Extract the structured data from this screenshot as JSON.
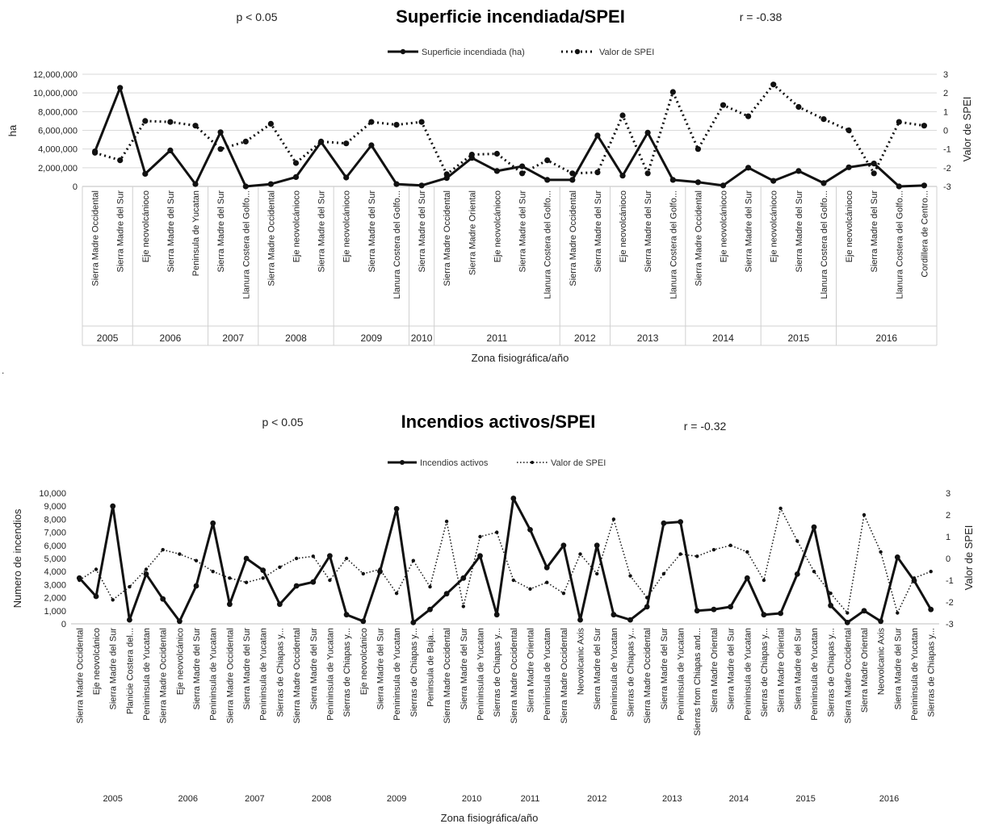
{
  "chart_data": [
    {
      "type": "line",
      "title": "Superficie incendiada/SPEI",
      "p_note": "p < 0.05",
      "r_note": "r = -0.38",
      "xlabel": "Zona fisiográfica/año",
      "ylabel": "ha",
      "y2label": "Valor de SPEI",
      "ylim": [
        0,
        12000000
      ],
      "y_ticks": [
        "0",
        "2,000,000",
        "4,000,000",
        "6,000,000",
        "8,000,000",
        "10,000,000",
        "12,000,000"
      ],
      "y2lim": [
        -3,
        3
      ],
      "y2_ticks": [
        "-3",
        "-2",
        "-1",
        "0",
        "1",
        "2",
        "3"
      ],
      "grid": true,
      "legend_position": "top-center",
      "categories": [
        "Sierra Madre Occidental",
        "Sierra Madre del Sur",
        "Eje neovolcánioco",
        "Sierra Madre del Sur",
        "Peninsula de Yucatan",
        "Sierra Madre del Sur",
        "Llanura Costera del Golfo...",
        "Sierra Madre Occidental",
        "Eje neovolcánioco",
        "Sierra Madre del Sur",
        "Eje neovolcánioco",
        "Sierra Madre del Sur",
        "Llanura Costera del Golfo...",
        "Sierra Madre del Sur",
        "Sierra Madre Occidental",
        "Sierra Madre Oriental",
        "Eje neovolcánioco",
        "Sierra Madre del Sur",
        "Llanura Costera del Golfo...",
        "Sierra Madre Occidental",
        "Sierra Madre del Sur",
        "Eje neovolcánioco",
        "Sierra Madre del Sur",
        "Llanura Costera del Golfo...",
        "Sierra Madre Occidental",
        "Eje neovolcánioco",
        "Sierra Madre del Sur",
        "Eje neovolcánioco",
        "Sierra Madre del Sur",
        "Llanura Costera del Golfo...",
        "Eje neovolcánioco",
        "Sierra Madre del Sur",
        "Llanura Costera del Golfo...",
        "Cordillera de Centro..."
      ],
      "groups": [
        {
          "label": "2005",
          "start": 0,
          "end": 1
        },
        {
          "label": "2006",
          "start": 2,
          "end": 4
        },
        {
          "label": "2007",
          "start": 5,
          "end": 6
        },
        {
          "label": "2008",
          "start": 7,
          "end": 9
        },
        {
          "label": "2009",
          "start": 10,
          "end": 12
        },
        {
          "label": "2010",
          "start": 13,
          "end": 13
        },
        {
          "label": "2011",
          "start": 14,
          "end": 18
        },
        {
          "label": "2012",
          "start": 19,
          "end": 20
        },
        {
          "label": "2013",
          "start": 21,
          "end": 23
        },
        {
          "label": "2014",
          "start": 24,
          "end": 26
        },
        {
          "label": "2015",
          "start": 27,
          "end": 29
        },
        {
          "label": "2016",
          "start": 30,
          "end": 33
        }
      ],
      "series": [
        {
          "name": "Superficie incendiada (ha)",
          "axis": "left",
          "style": "solid",
          "values": [
            3750000,
            10550000,
            1350000,
            3850000,
            250000,
            5800000,
            0,
            250000,
            1000000,
            4750000,
            950000,
            4400000,
            250000,
            100000,
            900000,
            3050000,
            1650000,
            2150000,
            700000,
            700000,
            5450000,
            1150000,
            5750000,
            700000,
            450000,
            100000,
            2000000,
            600000,
            1650000,
            350000,
            2050000,
            2450000,
            0,
            100000
          ]
        },
        {
          "name": "Valor de SPEI",
          "axis": "right",
          "style": "dotted",
          "values": [
            -1.2,
            -1.6,
            0.5,
            0.45,
            0.25,
            -1.0,
            -0.6,
            0.35,
            -1.75,
            -0.6,
            -0.7,
            0.45,
            0.3,
            0.45,
            -2.35,
            -1.3,
            -1.25,
            -2.3,
            -1.6,
            -2.3,
            -2.25,
            0.8,
            -2.3,
            2.05,
            -1.0,
            1.35,
            0.75,
            2.45,
            1.25,
            0.6,
            0.0,
            -2.3,
            0.45,
            0.25
          ]
        }
      ]
    },
    {
      "type": "line",
      "title": "Incendios activos/SPEI",
      "p_note": "p < 0.05",
      "r_note": "r = -0.32",
      "xlabel": "Zona fisiográfica/año",
      "ylabel": "Numero de incendios",
      "y2label": "Valor de SPEI",
      "ylim": [
        0,
        10000
      ],
      "y_ticks": [
        "0",
        "1,000",
        "2,000",
        "3,000",
        "4,000",
        "5,000",
        "6,000",
        "7,000",
        "8,000",
        "9,000",
        "10,000"
      ],
      "y2lim": [
        -3,
        3
      ],
      "y2_ticks": [
        "-3",
        "-2",
        "-1",
        "0",
        "1",
        "2",
        "3"
      ],
      "grid": false,
      "legend_position": "top-center",
      "categories": [
        "Sierra Madre Occidental",
        "Eje neovolcánico",
        "Sierra Madre del Sur",
        "Planicie Costera del...",
        "Penininsula de Yucatan",
        "Sierra Madre Occidental",
        "Eje neovolcánico",
        "Sierra Madre del Sur",
        "Penininsula de Yucatan",
        "Sierra Madre Occidental",
        "Sierra Madre del Sur",
        "Penininsula de Yucatan",
        "Sierras de Chiapas y...",
        "Sierra Madre Occidental",
        "Sierra Madre del Sur",
        "Penininsula de Yucatan",
        "Sierras de Chiapas y...",
        "Eje neovolcánico",
        "Sierra Madre del Sur",
        "Penininsula de Yucatan",
        "Sierras de Chiapas y...",
        "Peninsula de Baja...",
        "Sierra Madre Occidental",
        "Sierra Madre del Sur",
        "Penininsula de Yucatan",
        "Sierras de Chiapas y...",
        "Sierra Madre Occidental",
        "Sierra Madre Oriental",
        "Penininsula de Yucatan",
        "Sierra Madre Occidental",
        "Neovolcanic Axis",
        "Sierra Madre del Sur",
        "Penininsula de Yucatan",
        "Sierras de Chiapas y...",
        "Sierra Madre Occidental",
        "Sierra Madre del Sur",
        "Penininsula de Yucatan",
        "Sierras from Chiapas and...",
        "Sierra Madre Oriental",
        "Sierra Madre del Sur",
        "Penininsula de Yucatan",
        "Sierras de Chiapas y...",
        "Sierra Madre Oriental",
        "Sierra Madre del Sur",
        "Penininsula de Yucatan",
        "Sierras de Chiapas y...",
        "Sierra Madre Occidental",
        "Sierra Madre Oriental",
        "Neovolcanic Axis",
        "Sierra Madre del Sur",
        "Penininsula de Yucatan",
        "Sierras de Chiapas y..."
      ],
      "groups": [
        {
          "label": "2005",
          "start": 0,
          "end": 4
        },
        {
          "label": "2006",
          "start": 5,
          "end": 8
        },
        {
          "label": "2007",
          "start": 9,
          "end": 12
        },
        {
          "label": "2008",
          "start": 13,
          "end": 16
        },
        {
          "label": "2009",
          "start": 17,
          "end": 21
        },
        {
          "label": "2010",
          "start": 22,
          "end": 25
        },
        {
          "label": "2011",
          "start": 26,
          "end": 28
        },
        {
          "label": "2012",
          "start": 29,
          "end": 33
        },
        {
          "label": "2013",
          "start": 34,
          "end": 37
        },
        {
          "label": "2014",
          "start": 38,
          "end": 41
        },
        {
          "label": "2015",
          "start": 42,
          "end": 45
        },
        {
          "label": "2016",
          "start": 46,
          "end": 51
        }
      ],
      "series": [
        {
          "name": "Incendios activos",
          "axis": "left",
          "style": "solid",
          "values": [
            3500,
            2100,
            9000,
            300,
            3800,
            1900,
            200,
            2900,
            7700,
            1500,
            5000,
            4100,
            1500,
            2900,
            3200,
            5200,
            700,
            200,
            4000,
            8800,
            100,
            1100,
            2300,
            3500,
            5200,
            700,
            9600,
            7200,
            4300,
            6000,
            300,
            6000,
            700,
            300,
            1300,
            7700,
            7800,
            1000,
            1100,
            1300,
            3500,
            700,
            800,
            3800,
            7400,
            1400,
            100,
            1000,
            200,
            5100,
            3300,
            1100
          ]
        },
        {
          "name": "Valor de SPEI",
          "axis": "right",
          "style": "dotted",
          "values": [
            -1.0,
            -0.5,
            -1.9,
            -1.3,
            -0.5,
            0.4,
            0.2,
            -0.1,
            -0.6,
            -0.9,
            -1.1,
            -0.9,
            -0.4,
            0.0,
            0.1,
            -1.0,
            0.0,
            -0.7,
            -0.5,
            -1.6,
            -0.1,
            -1.3,
            1.7,
            -2.2,
            1.0,
            1.2,
            -1.0,
            -1.4,
            -1.1,
            -1.6,
            0.2,
            -0.7,
            1.8,
            -0.8,
            -1.8,
            -0.7,
            0.2,
            0.1,
            0.4,
            0.6,
            0.3,
            -1.0,
            2.3,
            0.8,
            -0.6,
            -1.6,
            -2.5,
            2.0,
            0.3,
            -2.5,
            -0.9,
            -0.6
          ]
        }
      ]
    }
  ]
}
